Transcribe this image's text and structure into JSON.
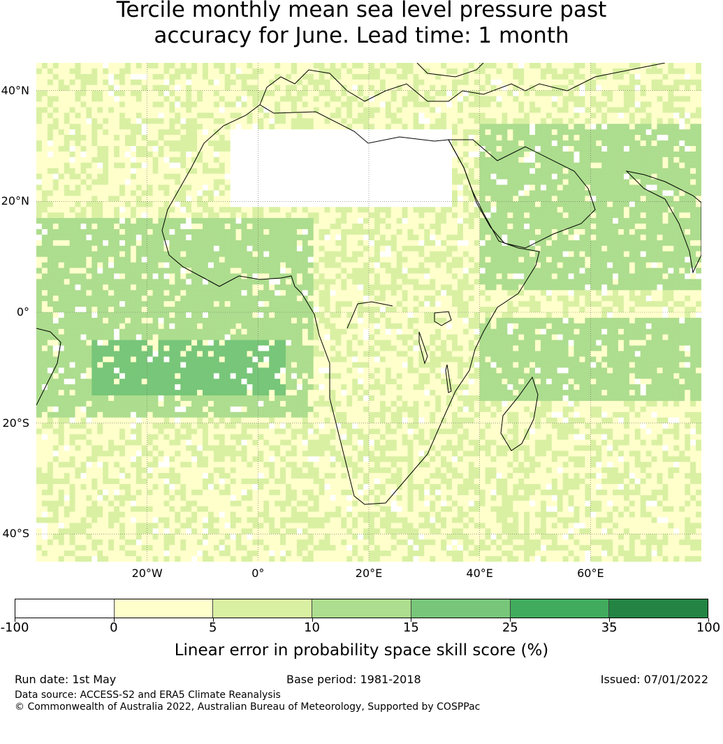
{
  "title": {
    "line1": "Tercile monthly mean sea level pressure past",
    "line2": "accuracy for June. Lead time: 1 month"
  },
  "map": {
    "lat_labels": [
      "40°N",
      "20°N",
      "0°",
      "20°S",
      "40°S"
    ],
    "lon_labels": [
      "20°W",
      "0°",
      "20°E",
      "40°E",
      "60°E"
    ],
    "extent": {
      "lon_min": -40,
      "lon_max": 80,
      "lat_min": -45,
      "lat_max": 45
    },
    "regions": [
      {
        "level": 3,
        "desc": "Tropical Atlantic band",
        "lon": [
          -40,
          10
        ],
        "lat": [
          -18,
          18
        ]
      },
      {
        "level": 4,
        "desc": "South-east Atlantic core",
        "lon": [
          -30,
          5
        ],
        "lat": [
          -14,
          -4
        ]
      },
      {
        "level": 3,
        "desc": "Arabian Sea / India",
        "lon": [
          40,
          80
        ],
        "lat": [
          5,
          35
        ]
      },
      {
        "level": 3,
        "desc": "Southern Indian Ocean band",
        "lon": [
          40,
          80
        ],
        "lat": [
          -15,
          0
        ]
      },
      {
        "level": 0,
        "desc": "Sahara",
        "lon": [
          -5,
          35
        ],
        "lat": [
          20,
          34
        ]
      }
    ]
  },
  "colorbar": {
    "ticks": [
      "-100",
      "0",
      "5",
      "10",
      "15",
      "25",
      "35",
      "100"
    ],
    "colors": [
      "#ffffff",
      "#ffffcc",
      "#d9f0a3",
      "#addd8e",
      "#78c679",
      "#41ab5d",
      "#238443"
    ],
    "label": "Linear error in probability space skill score (%)"
  },
  "footer": {
    "run_date": "Run date: 1st May",
    "base_period": "Base period: 1981-2018",
    "issued": "Issued: 07/01/2022",
    "data_source": "Data source: ACCESS-S2 and ERA5 Climate Reanalysis",
    "copyright": "© Commonwealth of Australia 2022, Australian Bureau of Meteorology, Supported by COSPPac"
  }
}
